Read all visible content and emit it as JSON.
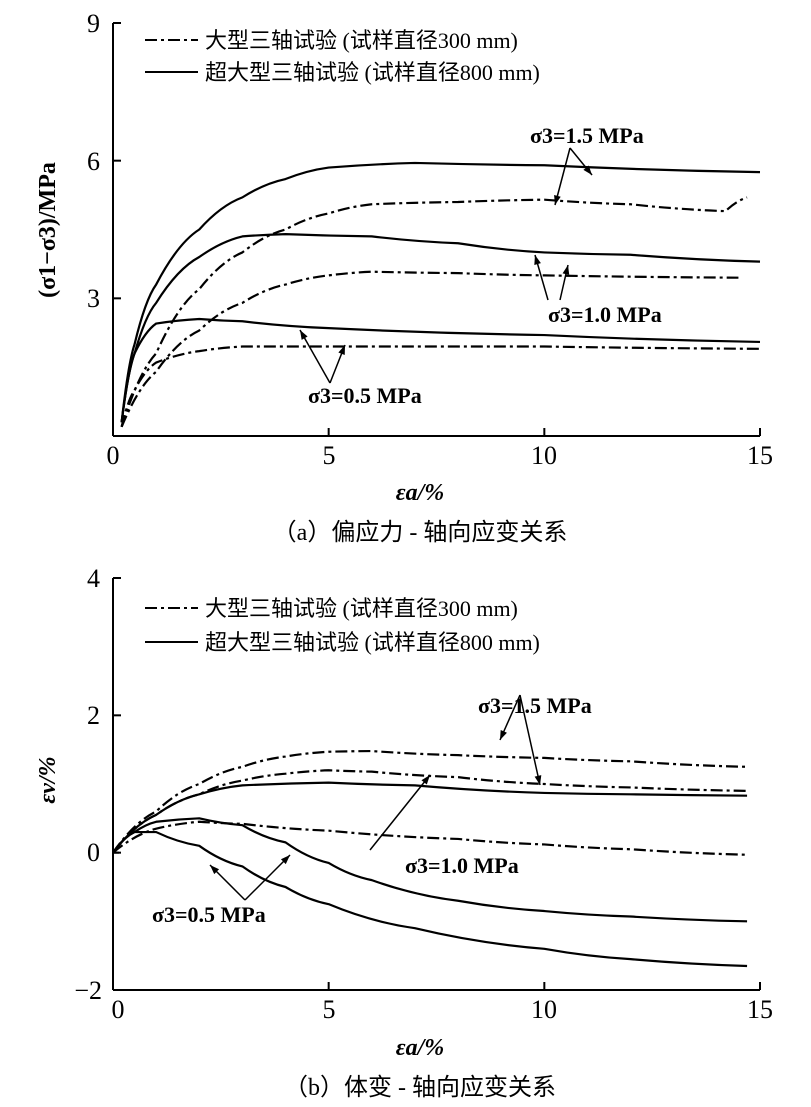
{
  "chart_data": [
    {
      "type": "line",
      "caption": "（a）偏应力 - 轴向应变关系",
      "xlabel": "εa/%",
      "ylabel": "(σ1−σ3)/MPa",
      "xlim": [
        0,
        15
      ],
      "ylim": [
        0,
        9
      ],
      "xticks": [
        "0",
        "5",
        "10",
        "15"
      ],
      "yticks": [
        "3",
        "6",
        "9"
      ],
      "legend": [
        "大型三轴试验 (试样直径300 mm)",
        "超大型三轴试验 (试样直径800 mm)"
      ],
      "annotations": [
        "σ3=1.5 MPa",
        "σ3=1.0 MPa",
        "σ3=0.5 MPa"
      ],
      "series": [
        {
          "name": "超大型 σ3=1.5 MPa",
          "style": "solid",
          "x": [
            0.2,
            0.5,
            1,
            2,
            3,
            4,
            5,
            7,
            10,
            15
          ],
          "y": [
            0.3,
            2,
            3.3,
            4.5,
            5.2,
            5.6,
            5.85,
            5.95,
            5.9,
            5.75
          ]
        },
        {
          "name": "大型 σ3=1.5 MPa",
          "style": "dashdot",
          "x": [
            0.2,
            1,
            2,
            3,
            4,
            5,
            6,
            8,
            10,
            12,
            14.2,
            14.7
          ],
          "y": [
            0.2,
            1.8,
            3.2,
            4.0,
            4.5,
            4.85,
            5.05,
            5.1,
            5.15,
            5.05,
            4.9,
            5.2
          ]
        },
        {
          "name": "超大型 σ3=1.0 MPa",
          "style": "solid",
          "x": [
            0.2,
            0.5,
            1,
            2,
            3,
            4,
            6,
            8,
            10,
            12,
            15
          ],
          "y": [
            0.3,
            1.8,
            2.9,
            3.9,
            4.35,
            4.4,
            4.35,
            4.2,
            4.0,
            3.95,
            3.8
          ]
        },
        {
          "name": "大型 σ3=1.0 MPa",
          "style": "dashdot",
          "x": [
            0.2,
            1,
            2,
            3,
            4,
            5,
            6,
            8,
            10,
            14.5
          ],
          "y": [
            0.2,
            1.4,
            2.3,
            2.9,
            3.3,
            3.5,
            3.58,
            3.55,
            3.5,
            3.45
          ]
        },
        {
          "name": "超大型 σ3=0.5 MPa",
          "style": "solid",
          "x": [
            0.2,
            0.5,
            1,
            2,
            3,
            5,
            10,
            15
          ],
          "y": [
            0.3,
            1.8,
            2.45,
            2.55,
            2.5,
            2.35,
            2.2,
            2.05
          ]
        },
        {
          "name": "大型 σ3=0.5 MPa",
          "style": "dashdot",
          "x": [
            0.2,
            0.5,
            1,
            2,
            3,
            5,
            10,
            15
          ],
          "y": [
            0.2,
            1.0,
            1.6,
            1.85,
            1.95,
            1.95,
            1.95,
            1.9
          ]
        }
      ]
    },
    {
      "type": "line",
      "caption": "（b）体变 - 轴向应变关系",
      "xlabel": "εa/%",
      "ylabel": "εv/%",
      "xlim": [
        0,
        15
      ],
      "ylim": [
        -2,
        4
      ],
      "xticks": [
        "0",
        "5",
        "10",
        "15"
      ],
      "yticks": [
        "−2",
        "0",
        "2",
        "4"
      ],
      "legend": [
        "大型三轴试验 (试样直径300 mm)",
        "超大型三轴试验 (试样直径800 mm)"
      ],
      "annotations": [
        "σ3=1.5 MPa",
        "σ3=1.0 MPa",
        "σ3=0.5 MPa"
      ],
      "series": [
        {
          "name": "大型 σ3=1.5 MPa",
          "style": "dashdot",
          "x": [
            0,
            1,
            2,
            3,
            4,
            5,
            6,
            8,
            10,
            12,
            14.7
          ],
          "y": [
            0,
            0.6,
            1.0,
            1.25,
            1.4,
            1.47,
            1.48,
            1.42,
            1.38,
            1.33,
            1.25
          ]
        },
        {
          "name": "大型 σ3=1.0 MPa",
          "style": "dashdot",
          "x": [
            0,
            1,
            2,
            3,
            4,
            5,
            6,
            8,
            10,
            12,
            14.7
          ],
          "y": [
            0,
            0.55,
            0.85,
            1.05,
            1.15,
            1.2,
            1.18,
            1.1,
            1.0,
            0.95,
            0.9
          ]
        },
        {
          "name": "超大型 σ3=1.5 MPa",
          "style": "solid",
          "x": [
            0,
            1,
            2,
            3,
            5,
            7,
            10,
            12,
            14.7
          ],
          "y": [
            0,
            0.55,
            0.85,
            0.98,
            1.02,
            0.98,
            0.87,
            0.85,
            0.83
          ]
        },
        {
          "name": "超大型 σ3=1.0 MPa",
          "style": "solid",
          "x": [
            0,
            0.5,
            1,
            2,
            3,
            4,
            5,
            6,
            8,
            10,
            12,
            14.7
          ],
          "y": [
            0,
            0.3,
            0.45,
            0.5,
            0.4,
            0.15,
            -0.15,
            -0.4,
            -0.7,
            -0.85,
            -0.93,
            -1.0
          ]
        },
        {
          "name": "大型 σ3=0.5 MPa",
          "style": "dashdot",
          "x": [
            0,
            1,
            2,
            3,
            5,
            8,
            10,
            12,
            14.7
          ],
          "y": [
            0,
            0.35,
            0.45,
            0.42,
            0.32,
            0.2,
            0.12,
            0.05,
            -0.03
          ]
        },
        {
          "name": "超大型 σ3=0.5 MPa",
          "style": "solid",
          "x": [
            0,
            0.5,
            1,
            2,
            3,
            4,
            5,
            7,
            10,
            12,
            14.7
          ],
          "y": [
            0,
            0.3,
            0.3,
            0.1,
            -0.2,
            -0.5,
            -0.75,
            -1.1,
            -1.4,
            -1.55,
            -1.65
          ]
        }
      ]
    }
  ]
}
